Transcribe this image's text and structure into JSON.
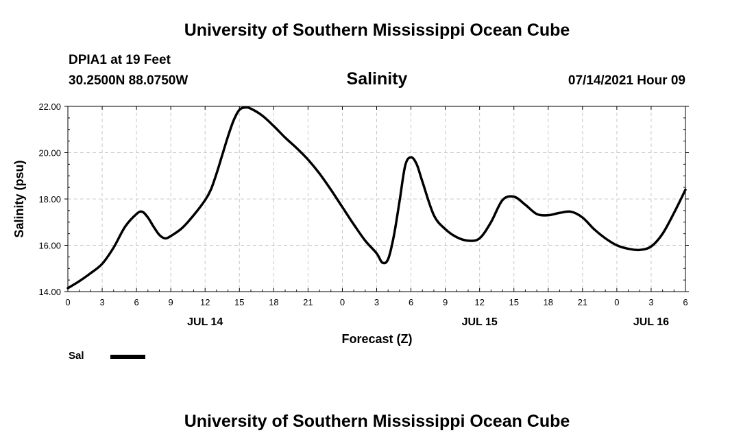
{
  "header": {
    "top_title": "University of Southern Mississippi Ocean Cube",
    "station": "DPIA1 at 19 Feet",
    "coords": "30.2500N  88.0750W",
    "chart_title": "Salinity",
    "date": "07/14/2021 Hour 09",
    "bottom_title": "University of Southern Mississippi Ocean Cube"
  },
  "legend": {
    "label": "Sal",
    "color": "#000000"
  },
  "chart_data": {
    "type": "line",
    "title": "Salinity",
    "xlabel": "Forecast (Z)",
    "ylabel": "Salinity (psu)",
    "xlim": [
      0,
      54
    ],
    "ylim": [
      14.0,
      22.0
    ],
    "grid": true,
    "x_ticks": [
      0,
      3,
      6,
      9,
      12,
      15,
      18,
      21,
      24,
      27,
      30,
      33,
      36,
      39,
      42,
      45,
      48,
      51,
      54
    ],
    "x_tick_labels": [
      "0",
      "3",
      "6",
      "9",
      "12",
      "15",
      "18",
      "21",
      "0",
      "3",
      "6",
      "9",
      "12",
      "15",
      "18",
      "21",
      "0",
      "3",
      "6"
    ],
    "y_ticks": [
      14,
      16,
      18,
      20,
      22
    ],
    "y_tick_labels": [
      "14.00",
      "16.00",
      "18.00",
      "20.00",
      "22.00"
    ],
    "day_labels": [
      {
        "x": 12,
        "text": "JUL 14"
      },
      {
        "x": 36,
        "text": "JUL 15"
      },
      {
        "x": 51,
        "text": "JUL 16"
      }
    ],
    "series": [
      {
        "name": "Sal",
        "color": "#000000",
        "x": [
          0,
          1,
          2,
          3,
          4,
          5,
          6,
          6.5,
          7,
          7.5,
          8,
          8.5,
          9,
          10,
          11,
          12,
          12.5,
          13,
          13.5,
          14,
          14.5,
          15,
          15.5,
          16,
          17,
          18,
          19,
          20,
          21,
          22,
          23,
          24,
          25,
          26,
          27,
          27.5,
          28,
          28.5,
          29,
          29.5,
          30,
          30.5,
          31,
          32,
          33,
          34,
          35,
          36,
          37,
          38,
          39,
          40,
          41,
          42,
          43,
          44,
          45,
          46,
          47,
          48,
          49,
          50,
          51,
          52,
          53,
          54
        ],
        "values": [
          14.15,
          14.45,
          14.8,
          15.2,
          15.9,
          16.8,
          17.35,
          17.45,
          17.2,
          16.8,
          16.45,
          16.3,
          16.4,
          16.75,
          17.3,
          17.95,
          18.4,
          19.1,
          19.9,
          20.7,
          21.4,
          21.85,
          21.95,
          21.9,
          21.6,
          21.15,
          20.65,
          20.2,
          19.7,
          19.1,
          18.4,
          17.65,
          16.9,
          16.2,
          15.65,
          15.25,
          15.4,
          16.4,
          17.9,
          19.45,
          19.8,
          19.5,
          18.75,
          17.3,
          16.7,
          16.35,
          16.2,
          16.3,
          17.0,
          17.95,
          18.1,
          17.75,
          17.35,
          17.3,
          17.4,
          17.45,
          17.2,
          16.7,
          16.3,
          16.0,
          15.85,
          15.8,
          15.95,
          16.5,
          17.4,
          18.4
        ]
      }
    ]
  }
}
